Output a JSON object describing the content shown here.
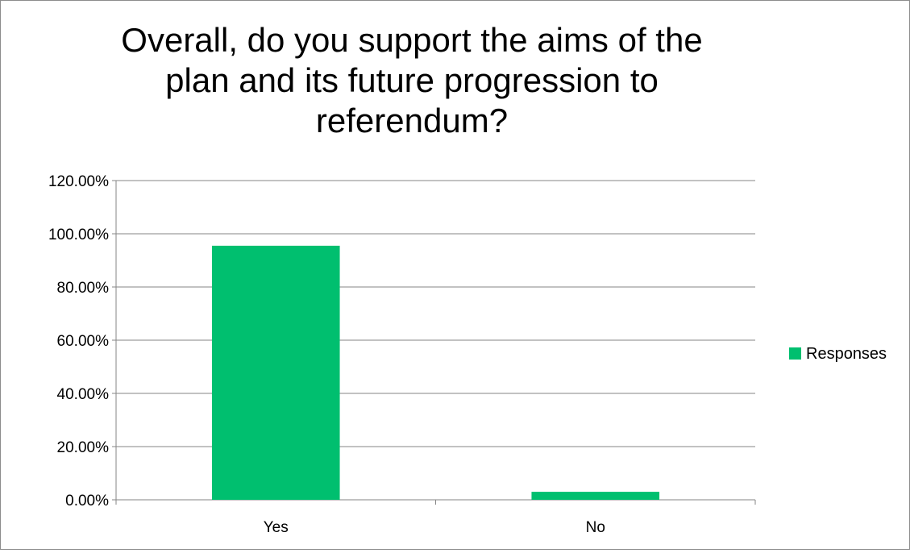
{
  "chart_data": {
    "type": "bar",
    "title": "Overall, do you support the aims of the plan and its future progression to referendum?",
    "categories": [
      "Yes",
      "No"
    ],
    "series": [
      {
        "name": "Responses",
        "values": [
          95.5,
          3.0
        ]
      }
    ],
    "ylim": [
      0,
      120
    ],
    "yticks": [
      0,
      20,
      40,
      60,
      80,
      100,
      120
    ],
    "ytick_labels": [
      "0.00%",
      "20.00%",
      "40.00%",
      "60.00%",
      "80.00%",
      "100.00%",
      "120.00%"
    ],
    "xlabel": "",
    "ylabel": "",
    "grid": true,
    "legend_position": "right",
    "colors": {
      "series": "#00bf6f",
      "axis": "#868686",
      "grid": "#868686",
      "text": "#000000"
    }
  }
}
